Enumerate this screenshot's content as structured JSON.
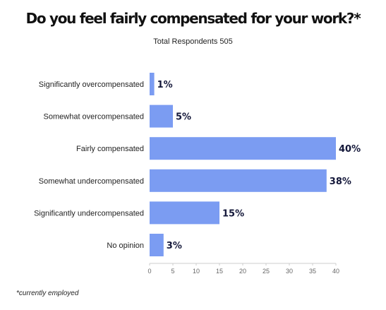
{
  "chart_data": {
    "type": "bar",
    "orientation": "horizontal",
    "title": "Do you feel fairly compensated for your work?*",
    "subtitle": "Total Respondents 505",
    "categories": [
      "Significantly overcompensated",
      "Somewhat overcompensated",
      "Fairly compensated",
      "Somewhat undercompensated",
      "Significantly undercompensated",
      "No opinion"
    ],
    "values": [
      1,
      5,
      40,
      38,
      15,
      3
    ],
    "data_labels": [
      "1%",
      "5%",
      "40%",
      "38%",
      "15%",
      "3%"
    ],
    "xlim": [
      0,
      40
    ],
    "xticks": [
      0,
      5,
      10,
      15,
      20,
      25,
      30,
      35,
      40
    ],
    "xlabel": "",
    "ylabel": "",
    "grid": false,
    "legend": "none",
    "bar_color": "#7b9cf2",
    "label_color": "#14183a",
    "footnote": "*currently employed"
  }
}
